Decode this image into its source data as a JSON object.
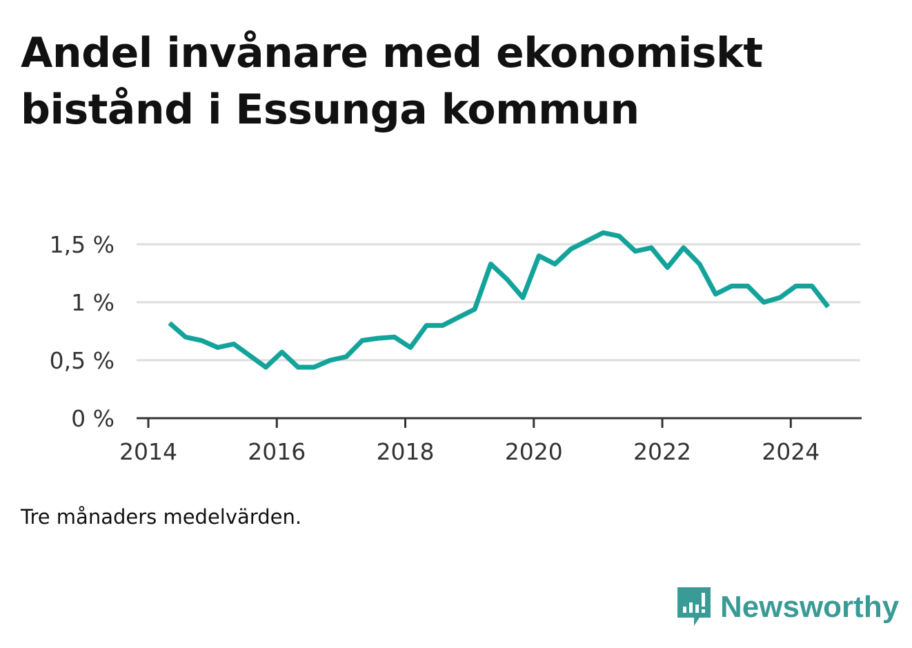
{
  "title": "Andel invånare med ekonomiskt bistånd i Essunga kommun",
  "note": "Tre månaders medelvärden.",
  "brand": {
    "name": "Newsworthy",
    "icon": "newsworthy-logo-icon",
    "color": "#3a9b96"
  },
  "colors": {
    "line": "#14a39a",
    "grid": "#dddddd",
    "axis": "#333333"
  },
  "chart_data": {
    "type": "line",
    "title": "Andel invånare med ekonomiskt bistånd i Essunga kommun",
    "xlabel": "",
    "ylabel": "",
    "xlim": [
      2014,
      2025.1
    ],
    "ylim": [
      0,
      1.5
    ],
    "x_ticks": [
      2014,
      2016,
      2018,
      2020,
      2022,
      2024
    ],
    "x_tick_labels": [
      "2014",
      "2016",
      "2018",
      "2020",
      "2022",
      "2024"
    ],
    "y_ticks": [
      0,
      0.5,
      1,
      1.5
    ],
    "y_tick_labels": [
      "0 %",
      "0,5 %",
      "1 %",
      "1,5 %"
    ],
    "grid": true,
    "series": [
      {
        "x": [
          2014.33,
          2014.58,
          2014.83,
          2015.08,
          2015.33,
          2015.58,
          2015.83,
          2016.08,
          2016.33,
          2016.58,
          2016.83,
          2017.08,
          2017.33,
          2017.58,
          2017.83,
          2018.08,
          2018.33,
          2018.58,
          2018.83,
          2019.08,
          2019.33,
          2019.58,
          2019.83,
          2020.08,
          2020.33,
          2020.58,
          2020.83,
          2021.08,
          2021.33,
          2021.58,
          2021.83,
          2022.08,
          2022.33,
          2022.58,
          2022.83,
          2023.08,
          2023.33,
          2023.58,
          2023.83,
          2024.08,
          2024.33,
          2024.58
        ],
        "values": [
          0.82,
          0.7,
          0.67,
          0.61,
          0.64,
          0.54,
          0.44,
          0.57,
          0.44,
          0.44,
          0.5,
          0.53,
          0.67,
          0.69,
          0.7,
          0.61,
          0.8,
          0.8,
          0.87,
          0.94,
          1.33,
          1.2,
          1.04,
          1.4,
          1.33,
          1.46,
          1.53,
          1.6,
          1.57,
          1.44,
          1.47,
          1.3,
          1.47,
          1.33,
          1.07,
          1.14,
          1.14,
          1.0,
          1.04,
          1.14,
          1.14,
          0.96
        ]
      }
    ]
  }
}
